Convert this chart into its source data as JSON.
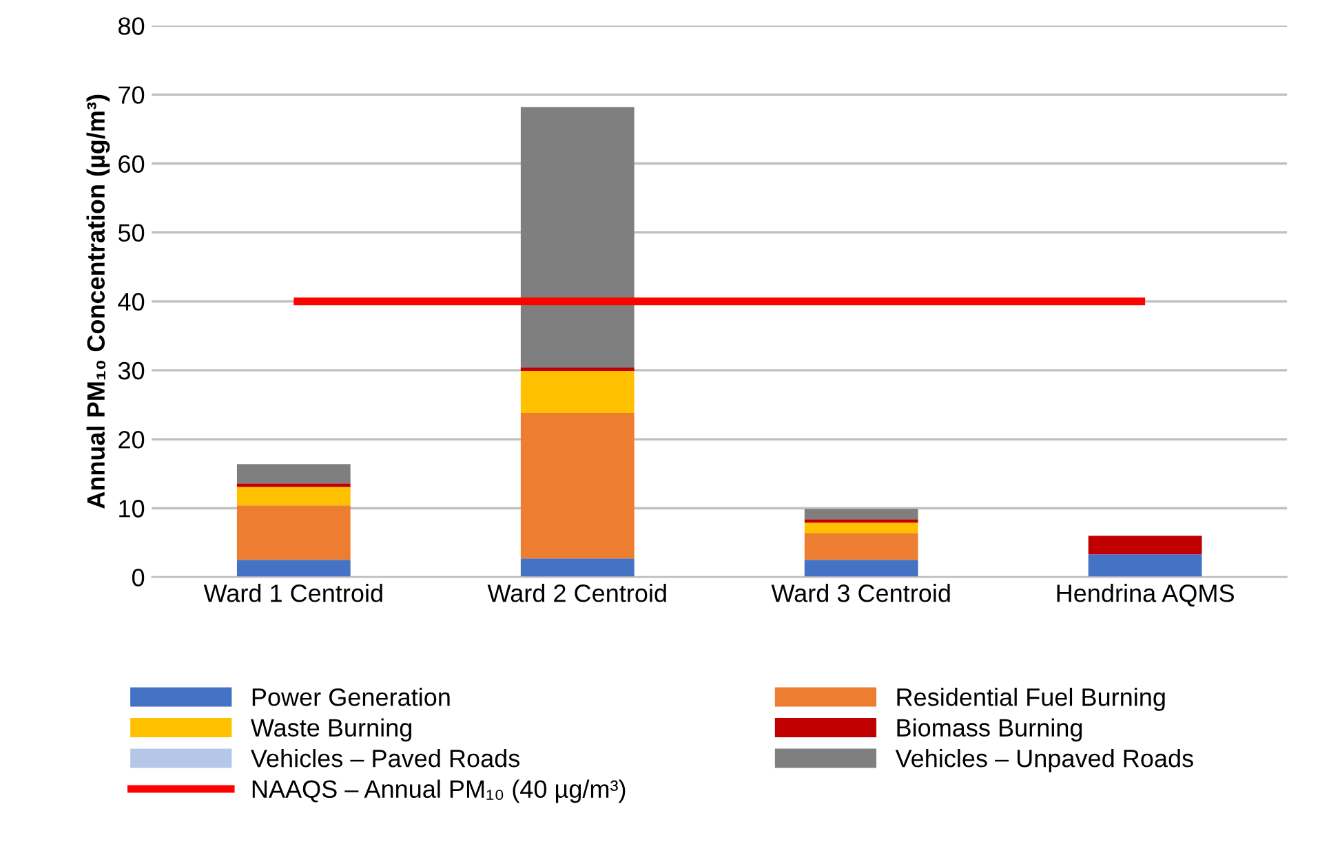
{
  "chart_data": {
    "type": "bar",
    "stacked": true,
    "ylabel": "Annual PM₁₀ Concentration (µg/m³)",
    "categories": [
      "Ward 1 Centroid",
      "Ward 2 Centroid",
      "Ward 3 Centroid",
      "Hendrina AQMS"
    ],
    "series": [
      {
        "name": "Power Generation",
        "color": "#4472c4",
        "values": [
          2.5,
          2.7,
          2.5,
          3.3
        ]
      },
      {
        "name": "Residential Fuel Burning",
        "color": "#ed7d31",
        "values": [
          7.9,
          21.1,
          3.9,
          0
        ]
      },
      {
        "name": "Waste Burning",
        "color": "#ffc000",
        "values": [
          2.7,
          6.1,
          1.5,
          0
        ]
      },
      {
        "name": "Biomass Burning",
        "color": "#c00000",
        "values": [
          0.5,
          0.5,
          0.5,
          2.7
        ]
      },
      {
        "name": "Vehicles – Paved Roads",
        "color": "#b4c7e7",
        "values": [
          0,
          0,
          0,
          0
        ]
      },
      {
        "name": "Vehicles – Unpaved Roads",
        "color": "#7f7f7f",
        "values": [
          2.8,
          37.8,
          1.5,
          0
        ]
      }
    ],
    "ref_lines": [
      {
        "axis": "y",
        "value": 40,
        "label": "NAAQS – Annual PM₁₀ (40 µg/m³)",
        "color": "#ff0000",
        "line_style": "solid"
      }
    ],
    "ylim": [
      0,
      80
    ],
    "yticks": [
      0,
      10,
      20,
      30,
      40,
      50,
      60,
      70,
      80
    ],
    "grid": "y",
    "legend": "bottom"
  }
}
